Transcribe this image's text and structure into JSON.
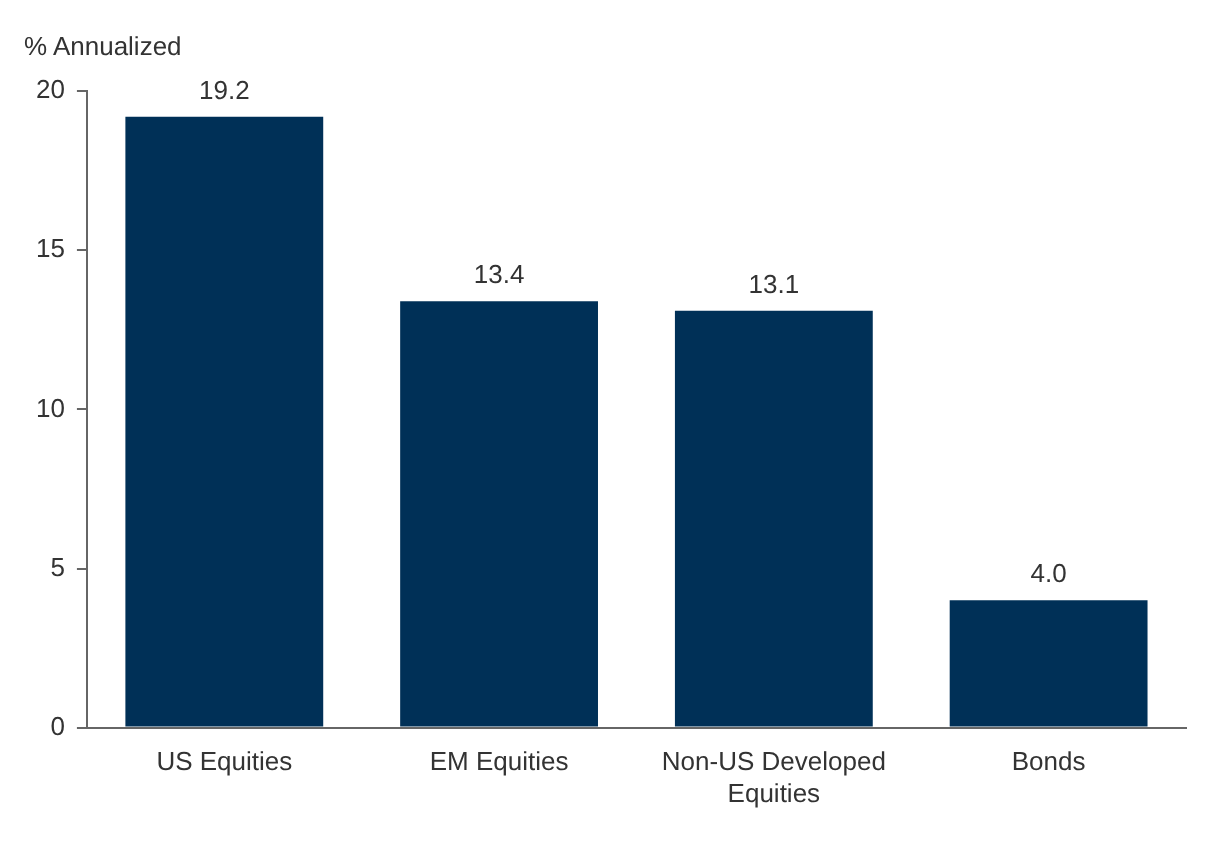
{
  "chart_data": {
    "type": "bar",
    "title": "% Annualized",
    "categories": [
      "US Equities",
      "EM Equities",
      "Non-US Developed Equities",
      "Bonds"
    ],
    "values": [
      19.2,
      13.4,
      13.1,
      4.0
    ],
    "value_labels": [
      "19.2",
      "13.4",
      "13.1",
      "4.0"
    ],
    "color": "#003057",
    "ylim": [
      0,
      20
    ],
    "yticks": [
      0,
      5,
      10,
      15,
      20
    ],
    "grid": false,
    "legend": false
  }
}
